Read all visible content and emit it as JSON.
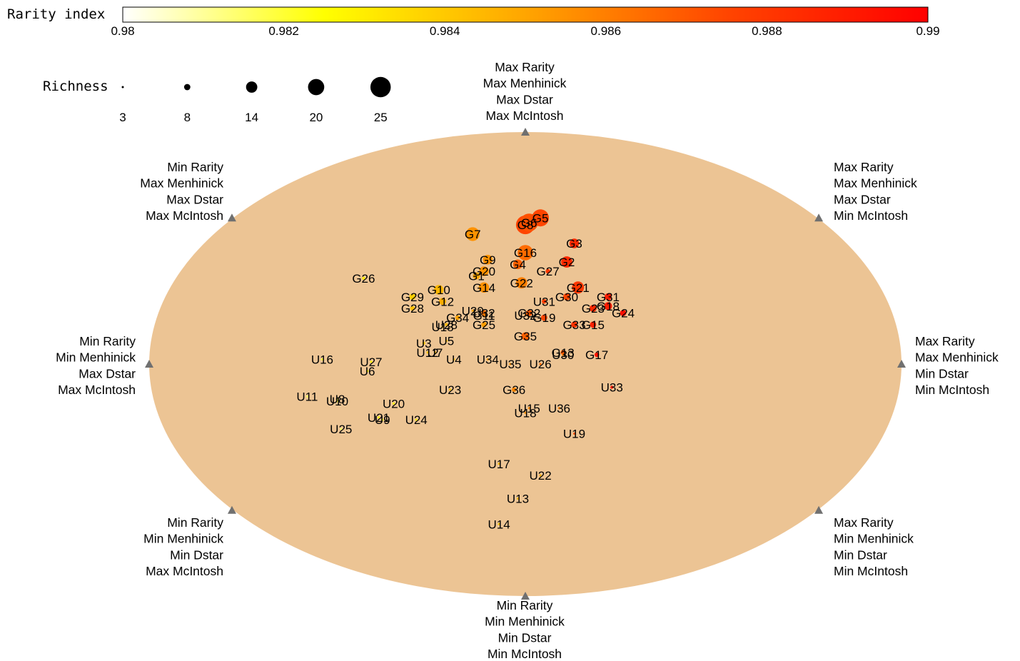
{
  "chart_data": {
    "type": "scatter",
    "title": "",
    "colorbar": {
      "label": "Rarity index",
      "min": 0.98,
      "max": 0.99,
      "ticks": [
        "0.98",
        "0.982",
        "0.984",
        "0.986",
        "0.988",
        "0.99"
      ],
      "colors": [
        "#ffffff",
        "#ffff00",
        "#ffa500",
        "#ff4500",
        "#ff0000"
      ]
    },
    "size_legend": {
      "label": "Richness",
      "values": [
        3,
        8,
        14,
        20,
        25
      ],
      "labels": [
        "3",
        "8",
        "14",
        "20",
        "25"
      ]
    },
    "background_color": "#ecc494",
    "marker_color": "#707070",
    "axes": {
      "x_range": [
        -1,
        1
      ],
      "y_range": [
        -1,
        1
      ],
      "x_meaning": "Rarity",
      "y_meaning": "Menhinick"
    },
    "corner_labels": [
      {
        "pos": "top",
        "lines": [
          "Max Rarity",
          "Max Menhinick",
          "Max Dstar",
          "Max McIntosh"
        ]
      },
      {
        "pos": "top-left",
        "lines": [
          "Min Rarity",
          "Max Menhinick",
          "Max Dstar",
          "Max McIntosh"
        ]
      },
      {
        "pos": "top-right",
        "lines": [
          "Max Rarity",
          "Max Menhinick",
          "Max Dstar",
          "Min McIntosh"
        ]
      },
      {
        "pos": "left",
        "lines": [
          "Min Rarity",
          "Min Menhinick",
          "Max Dstar",
          "Max McIntosh"
        ]
      },
      {
        "pos": "right",
        "lines": [
          "Max Rarity",
          "Max Menhinick",
          "Min Dstar",
          "Min McIntosh"
        ]
      },
      {
        "pos": "bottom-left",
        "lines": [
          "Min Rarity",
          "Min Menhinick",
          "Min Dstar",
          "Max McIntosh"
        ]
      },
      {
        "pos": "bottom-right",
        "lines": [
          "Max Rarity",
          "Min Menhinick",
          "Min Dstar",
          "Min McIntosh"
        ]
      },
      {
        "pos": "bottom",
        "lines": [
          "Min Rarity",
          "Min Menhinick",
          "Min Dstar",
          "Min McIntosh"
        ]
      }
    ],
    "points": [
      {
        "label": "G5",
        "x": 0.04,
        "y": 0.63,
        "richness": 21,
        "rarity": 0.9875
      },
      {
        "label": "G8",
        "x": 0.0,
        "y": 0.6,
        "richness": 23,
        "rarity": 0.9875
      },
      {
        "label": "G6",
        "x": 0.01,
        "y": 0.61,
        "richness": 22,
        "rarity": 0.9872
      },
      {
        "label": "G7",
        "x": -0.14,
        "y": 0.56,
        "richness": 17,
        "rarity": 0.9855
      },
      {
        "label": "G3",
        "x": 0.13,
        "y": 0.52,
        "richness": 12,
        "rarity": 0.9885
      },
      {
        "label": "G16",
        "x": 0.0,
        "y": 0.48,
        "richness": 19,
        "rarity": 0.9865
      },
      {
        "label": "G9",
        "x": -0.1,
        "y": 0.45,
        "richness": 12,
        "rarity": 0.9855
      },
      {
        "label": "G4",
        "x": -0.02,
        "y": 0.43,
        "richness": 12,
        "rarity": 0.9868
      },
      {
        "label": "G2",
        "x": 0.11,
        "y": 0.44,
        "richness": 14,
        "rarity": 0.9885
      },
      {
        "label": "G27",
        "x": 0.06,
        "y": 0.4,
        "richness": 6,
        "rarity": 0.988
      },
      {
        "label": "G20",
        "x": -0.11,
        "y": 0.4,
        "richness": 12,
        "rarity": 0.9855
      },
      {
        "label": "G1",
        "x": -0.13,
        "y": 0.38,
        "richness": 9,
        "rarity": 0.985
      },
      {
        "label": "G26",
        "x": -0.43,
        "y": 0.37,
        "richness": 4,
        "rarity": 0.983
      },
      {
        "label": "G22",
        "x": -0.01,
        "y": 0.35,
        "richness": 14,
        "rarity": 0.986
      },
      {
        "label": "G14",
        "x": -0.11,
        "y": 0.33,
        "richness": 13,
        "rarity": 0.9855
      },
      {
        "label": "G21",
        "x": 0.14,
        "y": 0.33,
        "richness": 15,
        "rarity": 0.988
      },
      {
        "label": "G10",
        "x": -0.23,
        "y": 0.32,
        "richness": 12,
        "rarity": 0.9845
      },
      {
        "label": "G31",
        "x": 0.22,
        "y": 0.29,
        "richness": 9,
        "rarity": 0.989
      },
      {
        "label": "G30",
        "x": 0.11,
        "y": 0.29,
        "richness": 9,
        "rarity": 0.9875
      },
      {
        "label": "G29",
        "x": -0.3,
        "y": 0.29,
        "richness": 8,
        "rarity": 0.9838
      },
      {
        "label": "U31",
        "x": 0.05,
        "y": 0.27,
        "richness": 6,
        "rarity": 0.9878
      },
      {
        "label": "G12",
        "x": -0.22,
        "y": 0.27,
        "richness": 9,
        "rarity": 0.9848
      },
      {
        "label": "G28",
        "x": -0.3,
        "y": 0.24,
        "richness": 6,
        "rarity": 0.9842
      },
      {
        "label": "G18",
        "x": 0.22,
        "y": 0.25,
        "richness": 10,
        "rarity": 0.989
      },
      {
        "label": "G23",
        "x": 0.18,
        "y": 0.24,
        "richness": 9,
        "rarity": 0.9885
      },
      {
        "label": "G24",
        "x": 0.26,
        "y": 0.22,
        "richness": 8,
        "rarity": 0.9895
      },
      {
        "label": "U29",
        "x": -0.14,
        "y": 0.23,
        "richness": 3,
        "rarity": 0.985
      },
      {
        "label": "U32",
        "x": -0.11,
        "y": 0.22,
        "richness": 7,
        "rarity": 0.9865
      },
      {
        "label": "G11",
        "x": -0.11,
        "y": 0.21,
        "richness": 5,
        "rarity": 0.9862
      },
      {
        "label": "G32",
        "x": 0.01,
        "y": 0.22,
        "richness": 8,
        "rarity": 0.987
      },
      {
        "label": "U32",
        "x": -0.0,
        "y": 0.21,
        "richness": 3,
        "rarity": 0.986
      },
      {
        "label": "G19",
        "x": 0.05,
        "y": 0.2,
        "richness": 8,
        "rarity": 0.9875
      },
      {
        "label": "G34",
        "x": -0.18,
        "y": 0.2,
        "richness": 6,
        "rarity": 0.985
      },
      {
        "label": "G33",
        "x": 0.13,
        "y": 0.17,
        "richness": 8,
        "rarity": 0.9882
      },
      {
        "label": "G15",
        "x": 0.18,
        "y": 0.17,
        "richness": 8,
        "rarity": 0.9888
      },
      {
        "label": "G25",
        "x": -0.11,
        "y": 0.17,
        "richness": 7,
        "rarity": 0.9852
      },
      {
        "label": "U28",
        "x": -0.21,
        "y": 0.17,
        "richness": 4,
        "rarity": 0.9845
      },
      {
        "label": "U18",
        "x": -0.22,
        "y": 0.16,
        "richness": 3,
        "rarity": 0.9842
      },
      {
        "label": "G35",
        "x": 0.0,
        "y": 0.12,
        "richness": 10,
        "rarity": 0.9868
      },
      {
        "label": "U5",
        "x": -0.21,
        "y": 0.1,
        "richness": 3,
        "rarity": 0.984
      },
      {
        "label": "U3",
        "x": -0.27,
        "y": 0.09,
        "richness": 4,
        "rarity": 0.9838
      },
      {
        "label": "U12",
        "x": -0.26,
        "y": 0.05,
        "richness": 3,
        "rarity": 0.984
      },
      {
        "label": "U7",
        "x": -0.24,
        "y": 0.05,
        "richness": 3,
        "rarity": 0.9842
      },
      {
        "label": "G13",
        "x": 0.1,
        "y": 0.05,
        "richness": 6,
        "rarity": 0.987
      },
      {
        "label": "U30",
        "x": 0.1,
        "y": 0.04,
        "richness": 3,
        "rarity": 0.986
      },
      {
        "label": "G17",
        "x": 0.19,
        "y": 0.04,
        "richness": 6,
        "rarity": 0.9892
      },
      {
        "label": "U4",
        "x": -0.19,
        "y": 0.02,
        "richness": 3,
        "rarity": 0.9842
      },
      {
        "label": "U34",
        "x": -0.1,
        "y": 0.02,
        "richness": 3,
        "rarity": 0.985
      },
      {
        "label": "U35",
        "x": -0.04,
        "y": 0.0,
        "richness": 3,
        "rarity": 0.9855
      },
      {
        "label": "U26",
        "x": 0.04,
        "y": 0.0,
        "richness": 3,
        "rarity": 0.9865
      },
      {
        "label": "U16",
        "x": -0.54,
        "y": 0.02,
        "richness": 3,
        "rarity": 0.982
      },
      {
        "label": "U27",
        "x": -0.41,
        "y": 0.01,
        "richness": 3,
        "rarity": 0.9828
      },
      {
        "label": "U6",
        "x": -0.42,
        "y": -0.03,
        "richness": 3,
        "rarity": 0.9825
      },
      {
        "label": "U23",
        "x": -0.2,
        "y": -0.11,
        "richness": 3,
        "rarity": 0.9842
      },
      {
        "label": "G36",
        "x": -0.03,
        "y": -0.11,
        "richness": 6,
        "rarity": 0.9858
      },
      {
        "label": "U33",
        "x": 0.23,
        "y": -0.1,
        "richness": 4,
        "rarity": 0.9892
      },
      {
        "label": "U11",
        "x": -0.58,
        "y": -0.14,
        "richness": 3,
        "rarity": 0.9815
      },
      {
        "label": "U10",
        "x": -0.5,
        "y": -0.16,
        "richness": 3,
        "rarity": 0.9818
      },
      {
        "label": "U8",
        "x": -0.5,
        "y": -0.15,
        "richness": 3,
        "rarity": 0.9818
      },
      {
        "label": "U20",
        "x": -0.35,
        "y": -0.17,
        "richness": 3,
        "rarity": 0.9825
      },
      {
        "label": "U15",
        "x": 0.01,
        "y": -0.19,
        "richness": 3,
        "rarity": 0.9858
      },
      {
        "label": "U36",
        "x": 0.09,
        "y": -0.19,
        "richness": 3,
        "rarity": 0.986
      },
      {
        "label": "U18",
        "x": -0.0,
        "y": -0.21,
        "richness": 3,
        "rarity": 0.9855
      },
      {
        "label": "U21",
        "x": -0.39,
        "y": -0.23,
        "richness": 3,
        "rarity": 0.9825
      },
      {
        "label": "U9",
        "x": -0.38,
        "y": -0.24,
        "richness": 3,
        "rarity": 0.9825
      },
      {
        "label": "U24",
        "x": -0.29,
        "y": -0.24,
        "richness": 3,
        "rarity": 0.983
      },
      {
        "label": "U25",
        "x": -0.49,
        "y": -0.28,
        "richness": 3,
        "rarity": 0.9815
      },
      {
        "label": "U19",
        "x": 0.13,
        "y": -0.3,
        "richness": 3,
        "rarity": 0.9872
      },
      {
        "label": "U17",
        "x": -0.07,
        "y": -0.43,
        "richness": 3,
        "rarity": 0.9845
      },
      {
        "label": "U22",
        "x": 0.04,
        "y": -0.48,
        "richness": 3,
        "rarity": 0.9848
      },
      {
        "label": "U13",
        "x": -0.02,
        "y": -0.58,
        "richness": 3,
        "rarity": 0.9845
      },
      {
        "label": "U14",
        "x": -0.07,
        "y": -0.69,
        "richness": 3,
        "rarity": 0.9842
      }
    ]
  }
}
